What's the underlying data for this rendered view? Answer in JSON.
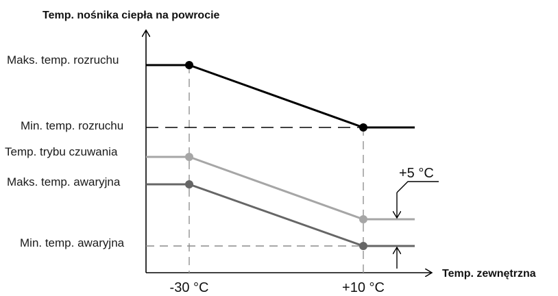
{
  "chart_data": {
    "type": "line",
    "y_axis_title": "Temp. nośnika ciepła na powrocie",
    "x_axis_title": "Temp. zewnętrzna",
    "x_ticks": [
      "-30 °C",
      "+10 °C"
    ],
    "y_levels": {
      "max_start": "Maks. temp. rozruchu",
      "min_start": "Min. temp. rozruchu",
      "standby": "Temp. trybu czuwania",
      "max_emergency": "Maks. temp. awaryjna",
      "min_emergency": "Min. temp. awaryjna"
    },
    "offset_label": "+5 °C",
    "series": [
      {
        "key": "start",
        "color": "#000000",
        "from_level": "max_start",
        "to_level": "min_start"
      },
      {
        "key": "standby",
        "color": "#a6a6a6",
        "from_level": "standby",
        "to_level": "standby_end"
      },
      {
        "key": "emergency",
        "color": "#666666",
        "from_level": "max_emergency",
        "to_level": "min_emergency"
      }
    ],
    "colors": {
      "axis": "#000000",
      "guide": "#a0a0a0",
      "dash_black": "#000000"
    }
  }
}
